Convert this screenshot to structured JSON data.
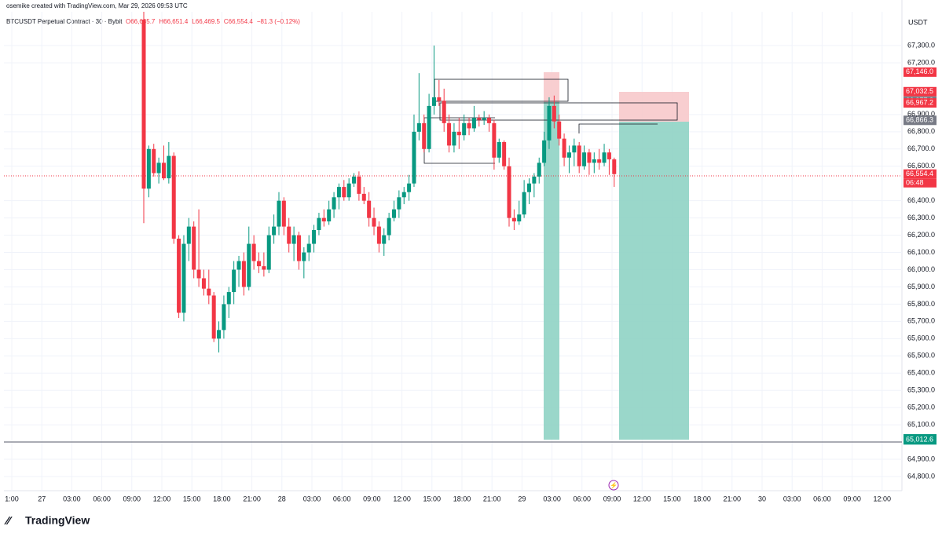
{
  "header": {
    "attribution": "osemike created with TradingView.com, Mar 29, 2026 09:53 UTC",
    "symbol": "BTCUSDT Perpetual Contract · 30 · Bybit",
    "ohlc": [
      "O66,635.7",
      "H66,651.4",
      "L66,469.5",
      "C66,554.4",
      "−81.3 (−0.12%)"
    ]
  },
  "logo": "TradingView",
  "chart_data": {
    "type": "candlestick",
    "axis_unit": "USDT",
    "up_color": "#089981",
    "down_color": "#f23645",
    "grid": true,
    "ylim": [
      64718,
      67496
    ],
    "yticks": [
      {
        "value": 67300,
        "label": "67,300.0"
      },
      {
        "value": 67200,
        "label": "67,200.0"
      },
      {
        "value": 66900,
        "label": "66,900.0"
      },
      {
        "value": 66800,
        "label": "66,800.0"
      },
      {
        "value": 66700,
        "label": "66,700.0"
      },
      {
        "value": 66600,
        "label": "66,600.0"
      },
      {
        "value": 66400,
        "label": "66,400.0"
      },
      {
        "value": 66300,
        "label": "66,300.0"
      },
      {
        "value": 66200,
        "label": "66,200.0"
      },
      {
        "value": 66100,
        "label": "66,100.0"
      },
      {
        "value": 66000,
        "label": "66,000.0"
      },
      {
        "value": 65900,
        "label": "65,900.0"
      },
      {
        "value": 65800,
        "label": "65,800.0"
      },
      {
        "value": 65700,
        "label": "65,700.0"
      },
      {
        "value": 65600,
        "label": "65,600.0"
      },
      {
        "value": 65500,
        "label": "65,500.0"
      },
      {
        "value": 65400,
        "label": "65,400.0"
      },
      {
        "value": 65300,
        "label": "65,300.0"
      },
      {
        "value": 65200,
        "label": "65,200.0"
      },
      {
        "value": 65100,
        "label": "65,100.0"
      },
      {
        "value": 64900,
        "label": "64,900.0"
      },
      {
        "value": 64800,
        "label": "64,800.0"
      }
    ],
    "x_labels": [
      "1:00",
      "27",
      "03:00",
      "06:00",
      "09:00",
      "12:00",
      "15:00",
      "18:00",
      "21:00",
      "28",
      "03:00",
      "06:00",
      "09:00",
      "12:00",
      "15:00",
      "18:00",
      "21:00",
      "29",
      "03:00",
      "06:00",
      "09:00",
      "12:00",
      "15:00",
      "18:00",
      "21:00",
      "30",
      "03:00",
      "06:00",
      "09:00",
      "12:00"
    ],
    "price_labels": [
      {
        "value": 67146.0,
        "label": "67,146.0",
        "color": "#f23645"
      },
      {
        "value": 67032.5,
        "label": "67,032.5",
        "color": "#f23645"
      },
      {
        "value": 66977.8,
        "label": "66,977.8",
        "color": "#787b86"
      },
      {
        "value": 66967.2,
        "label": "66,967.2",
        "color": "#f23645"
      },
      {
        "value": 66866.3,
        "label": "66,866.3",
        "color": "#787b86"
      },
      {
        "value": 66554.4,
        "label": "66,554.4",
        "color": "#f23645"
      },
      {
        "value": 65018.6,
        "label": "65,018.6",
        "color": "#089981"
      },
      {
        "value": 65012.6,
        "label": "65,012.6",
        "color": "#089981"
      }
    ],
    "countdown": "06:48",
    "ohlc": [
      [
        67450,
        67496,
        66270,
        66470
      ],
      [
        66470,
        66720,
        66420,
        66700
      ],
      [
        66700,
        66730,
        66540,
        66560
      ],
      [
        66560,
        66650,
        66500,
        66620
      ],
      [
        66620,
        66720,
        66520,
        66530
      ],
      [
        66530,
        66740,
        66500,
        66660
      ],
      [
        66660,
        66680,
        66150,
        66180
      ],
      [
        66180,
        66200,
        65720,
        65750
      ],
      [
        65750,
        66200,
        65700,
        66150
      ],
      [
        66150,
        66300,
        66050,
        66250
      ],
      [
        66250,
        66280,
        65950,
        66000
      ],
      [
        66000,
        66350,
        65900,
        65950
      ],
      [
        65950,
        66000,
        65850,
        65890
      ],
      [
        65890,
        66000,
        65800,
        65850
      ],
      [
        65850,
        65870,
        65580,
        65600
      ],
      [
        65600,
        65700,
        65520,
        65650
      ],
      [
        65650,
        65850,
        65600,
        65800
      ],
      [
        65800,
        65900,
        65720,
        65870
      ],
      [
        65870,
        66050,
        65800,
        66000
      ],
      [
        66000,
        66080,
        65900,
        66050
      ],
      [
        66050,
        66100,
        65850,
        65900
      ],
      [
        65900,
        66250,
        65880,
        66150
      ],
      [
        66150,
        66200,
        66000,
        66050
      ],
      [
        66050,
        66100,
        65980,
        66020
      ],
      [
        66020,
        66100,
        65960,
        66000
      ],
      [
        66000,
        66250,
        65980,
        66200
      ],
      [
        66200,
        66320,
        66150,
        66250
      ],
      [
        66250,
        66450,
        66200,
        66400
      ],
      [
        66400,
        66420,
        66200,
        66250
      ],
      [
        66250,
        66300,
        66100,
        66150
      ],
      [
        66150,
        66250,
        66050,
        66200
      ],
      [
        66200,
        66220,
        66000,
        66050
      ],
      [
        66050,
        66130,
        65950,
        66100
      ],
      [
        66100,
        66200,
        66050,
        66150
      ],
      [
        66150,
        66260,
        66100,
        66230
      ],
      [
        66230,
        66330,
        66200,
        66300
      ],
      [
        66300,
        66350,
        66250,
        66280
      ],
      [
        66280,
        66400,
        66260,
        66350
      ],
      [
        66350,
        66450,
        66300,
        66420
      ],
      [
        66420,
        66500,
        66350,
        66480
      ],
      [
        66480,
        66520,
        66400,
        66420
      ],
      [
        66420,
        66530,
        66400,
        66500
      ],
      [
        66500,
        66560,
        66480,
        66540
      ],
      [
        66540,
        66570,
        66400,
        66440
      ],
      [
        66440,
        66480,
        66380,
        66400
      ],
      [
        66400,
        66450,
        66250,
        66300
      ],
      [
        66300,
        66360,
        66200,
        66250
      ],
      [
        66250,
        66280,
        66100,
        66150
      ],
      [
        66150,
        66240,
        66080,
        66200
      ],
      [
        66200,
        66330,
        66170,
        66300
      ],
      [
        66300,
        66400,
        66280,
        66350
      ],
      [
        66350,
        66460,
        66300,
        66420
      ],
      [
        66420,
        66480,
        66380,
        66450
      ],
      [
        66450,
        66550,
        66400,
        66500
      ],
      [
        66500,
        66900,
        66480,
        66800
      ],
      [
        66800,
        67140,
        66750,
        66850
      ],
      [
        66850,
        66900,
        66680,
        66700
      ],
      [
        66700,
        67020,
        66680,
        66950
      ],
      [
        66950,
        67300,
        66900,
        67000
      ],
      [
        67000,
        67100,
        66950,
        66980
      ],
      [
        66980,
        67050,
        66800,
        66850
      ],
      [
        66850,
        66900,
        66680,
        66720
      ],
      [
        66720,
        66850,
        66680,
        66800
      ],
      [
        66800,
        66880,
        66700,
        66780
      ],
      [
        66780,
        66900,
        66750,
        66850
      ],
      [
        66850,
        66880,
        66780,
        66820
      ],
      [
        66820,
        66950,
        66800,
        66880
      ],
      [
        66880,
        66900,
        66830,
        66870
      ],
      [
        66870,
        66920,
        66840,
        66880
      ],
      [
        66880,
        66900,
        66800,
        66850
      ],
      [
        66850,
        66870,
        66580,
        66650
      ],
      [
        66650,
        66760,
        66620,
        66740
      ],
      [
        66740,
        66750,
        66580,
        66600
      ],
      [
        66600,
        66650,
        66250,
        66300
      ],
      [
        66300,
        66350,
        66230,
        66280
      ],
      [
        66280,
        66400,
        66260,
        66320
      ],
      [
        66320,
        66520,
        66300,
        66450
      ],
      [
        66450,
        66530,
        66380,
        66500
      ],
      [
        66500,
        66560,
        66420,
        66540
      ],
      [
        66540,
        66650,
        66500,
        66620
      ],
      [
        66620,
        66800,
        66600,
        66750
      ],
      [
        66750,
        67000,
        66700,
        66950
      ],
      [
        66950,
        67010,
        66820,
        66860
      ],
      [
        66860,
        66900,
        66720,
        66760
      ],
      [
        66760,
        66790,
        66600,
        66650
      ],
      [
        66650,
        66720,
        66560,
        66680
      ],
      [
        66680,
        66760,
        66600,
        66720
      ],
      [
        66720,
        66740,
        66560,
        66600
      ],
      [
        66600,
        66720,
        66580,
        66680
      ],
      [
        66680,
        66700,
        66550,
        66620
      ],
      [
        66620,
        66680,
        66560,
        66640
      ],
      [
        66640,
        66700,
        66580,
        66620
      ],
      [
        66620,
        66730,
        66600,
        66680
      ],
      [
        66680,
        66700,
        66550,
        66640
      ],
      [
        66640,
        66650,
        66480,
        66554.4
      ]
    ]
  }
}
